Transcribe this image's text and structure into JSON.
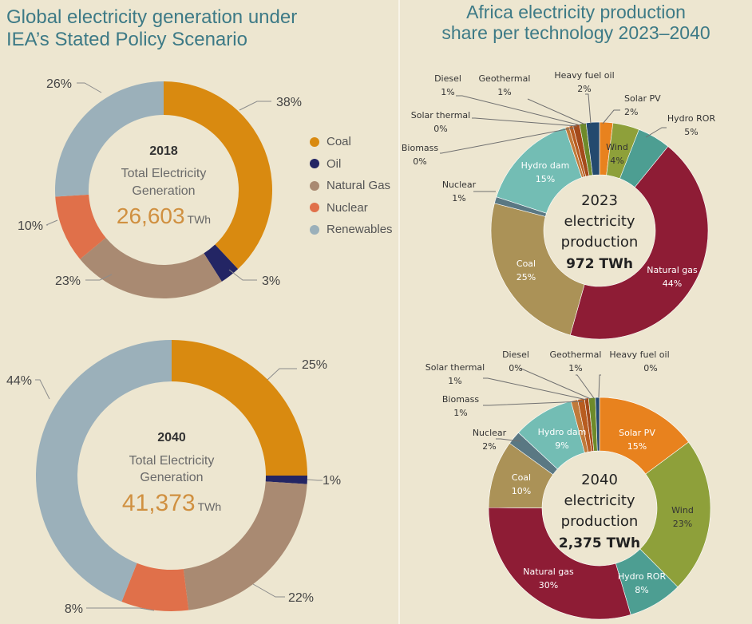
{
  "global": {
    "title_line1": "Global electricity generation under",
    "title_line2": "IEA’s Stated Policy Scenario",
    "legend": [
      {
        "label": "Coal",
        "color": "#d98a10"
      },
      {
        "label": "Oil",
        "color": "#232564"
      },
      {
        "label": "Natural Gas",
        "color": "#a98a72"
      },
      {
        "label": "Nuclear",
        "color": "#e0704a"
      },
      {
        "label": "Renewables",
        "color": "#9bb0ba"
      }
    ]
  },
  "africa": {
    "title_line1": "Africa electricity production",
    "title_line2": "share per technology 2023–2040"
  },
  "chart_data": [
    {
      "type": "pie",
      "id": "global-2018",
      "year": "2018",
      "center_label": "Total Electricity Generation",
      "center_label_line1": "Total Electricity",
      "center_label_line2": "Generation",
      "total": "26,603",
      "unit": "TWh",
      "categories": [
        "Coal",
        "Oil",
        "Natural Gas",
        "Nuclear",
        "Renewables"
      ],
      "values": [
        38,
        3,
        23,
        10,
        26
      ],
      "value_labels": [
        "38%",
        "3%",
        "23%",
        "10%",
        "26%"
      ],
      "colors": [
        "#d98a10",
        "#232564",
        "#a98a72",
        "#e0704a",
        "#9bb0ba"
      ]
    },
    {
      "type": "pie",
      "id": "global-2040",
      "year": "2040",
      "center_label": "Total Electricity Generation",
      "center_label_line1": "Total Electricity",
      "center_label_line2": "Generation",
      "total": "41,373",
      "unit": "TWh",
      "categories": [
        "Coal",
        "Oil",
        "Natural Gas",
        "Nuclear",
        "Renewables"
      ],
      "values": [
        25,
        1,
        22,
        8,
        44
      ],
      "value_labels": [
        "25%",
        "1%",
        "22%",
        "8%",
        "44%"
      ],
      "colors": [
        "#d98a10",
        "#232564",
        "#a98a72",
        "#e0704a",
        "#9bb0ba"
      ]
    },
    {
      "type": "pie",
      "id": "africa-2023",
      "center_line1": "2023",
      "center_line2": "electricity",
      "center_line3": "production",
      "total": "972 TWh",
      "categories": [
        "Solar PV",
        "Wind",
        "Hydro ROR",
        "Natural gas",
        "Coal",
        "Nuclear",
        "Hydro dam",
        "Biomass",
        "Solar thermal",
        "Diesel",
        "Geothermal",
        "Heavy fuel oil"
      ],
      "values": [
        2,
        4,
        5,
        44,
        25,
        1,
        15,
        0,
        0,
        1,
        1,
        2
      ],
      "value_labels": [
        "2%",
        "4%",
        "5%",
        "44%",
        "25%",
        "1%",
        "15%",
        "0%",
        "0%",
        "1%",
        "1%",
        "2%"
      ],
      "colors": [
        "#e8821e",
        "#8ea03a",
        "#4d9e92",
        "#8e1c35",
        "#ab9257",
        "#5a7883",
        "#73bdb4",
        "#c07a3a",
        "#b85c20",
        "#a44a1a",
        "#6e8a2a",
        "#244a6e"
      ]
    },
    {
      "type": "pie",
      "id": "africa-2040",
      "center_line1": "2040",
      "center_line2": "electricity",
      "center_line3": "production",
      "total": "2,375 TWh",
      "categories": [
        "Solar PV",
        "Wind",
        "Hydro ROR",
        "Natural gas",
        "Coal",
        "Nuclear",
        "Hydro dam",
        "Biomass",
        "Solar thermal",
        "Diesel",
        "Geothermal",
        "Heavy fuel oil"
      ],
      "values": [
        15,
        23,
        8,
        30,
        10,
        2,
        9,
        1,
        1,
        0,
        1,
        0
      ],
      "value_labels": [
        "15%",
        "23%",
        "8%",
        "30%",
        "10%",
        "2%",
        "9%",
        "1%",
        "1%",
        "0%",
        "1%",
        "0%"
      ],
      "colors": [
        "#e8821e",
        "#8ea03a",
        "#4d9e92",
        "#8e1c35",
        "#ab9257",
        "#5a7883",
        "#73bdb4",
        "#c07a3a",
        "#b85c20",
        "#a44a1a",
        "#6e8a2a",
        "#244a6e"
      ]
    }
  ]
}
